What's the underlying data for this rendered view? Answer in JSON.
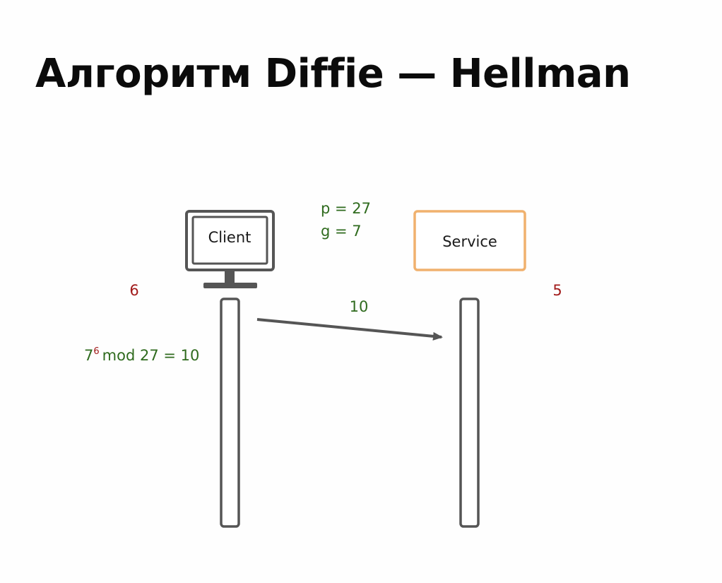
{
  "title": "Алгоритм Diffie — Hellman",
  "client": {
    "label": "Client",
    "secret": "6",
    "computation": {
      "base": "7",
      "exponent": "6",
      "rest": "mod 27 = 10"
    }
  },
  "service": {
    "label": "Service",
    "secret": "5"
  },
  "public_params": {
    "p": "p = 27",
    "g": "g = 7"
  },
  "message": {
    "value": "10"
  },
  "colors": {
    "title": "#0b0b0b",
    "public_value": "#2f6b1e",
    "secret_value": "#a11a1a",
    "service_box": "#f0b16e",
    "lines": "#555555"
  }
}
